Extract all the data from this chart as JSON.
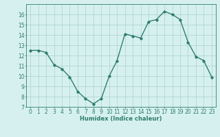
{
  "x": [
    0,
    1,
    2,
    3,
    4,
    5,
    6,
    7,
    8,
    9,
    10,
    11,
    12,
    13,
    14,
    15,
    16,
    17,
    18,
    19,
    20,
    21,
    22,
    23
  ],
  "y": [
    12.5,
    12.5,
    12.3,
    11.1,
    10.7,
    9.9,
    8.5,
    7.8,
    7.3,
    7.8,
    10.0,
    11.5,
    14.1,
    13.9,
    13.7,
    15.3,
    15.5,
    16.3,
    16.0,
    15.5,
    13.3,
    11.9,
    11.5,
    9.9
  ],
  "line_color": "#2e7d6e",
  "marker": "D",
  "marker_size": 1.8,
  "bg_color": "#d6f0f0",
  "grid_color": "#aacfcf",
  "xlabel": "Humidex (Indice chaleur)",
  "xlim": [
    -0.5,
    23.5
  ],
  "ylim": [
    7,
    17
  ],
  "yticks": [
    7,
    8,
    9,
    10,
    11,
    12,
    13,
    14,
    15,
    16
  ],
  "xticks": [
    0,
    1,
    2,
    3,
    4,
    5,
    6,
    7,
    8,
    9,
    10,
    11,
    12,
    13,
    14,
    15,
    16,
    17,
    18,
    19,
    20,
    21,
    22,
    23
  ],
  "xlabel_fontsize": 6.0,
  "tick_fontsize": 5.5,
  "line_width": 1.0
}
